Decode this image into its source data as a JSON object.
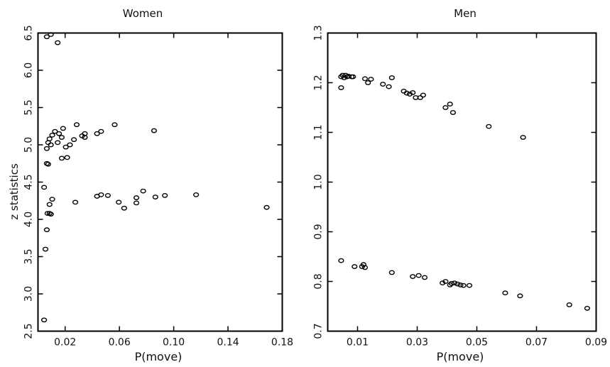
{
  "chart_data": [
    {
      "type": "scatter",
      "title": "Women",
      "xlabel": "P(move)",
      "ylabel": "z statistics",
      "xlim": [
        0.0,
        0.18
      ],
      "ylim": [
        2.5,
        6.5
      ],
      "xticks": [
        "0.02",
        "0.06",
        "0.10",
        "0.14",
        "0.18"
      ],
      "xtick_values": [
        0.02,
        0.06,
        0.1,
        0.14,
        0.18
      ],
      "yticks": [
        "2.5",
        "3.0",
        "3.5",
        "4.0",
        "4.5",
        "5.0",
        "5.5",
        "6.0",
        "6.5"
      ],
      "ytick_values": [
        2.5,
        3.0,
        3.5,
        4.0,
        4.5,
        5.0,
        5.5,
        6.0,
        6.5
      ],
      "marker": "open-circle",
      "points": [
        [
          0.0045,
          2.65
        ],
        [
          0.0055,
          3.6
        ],
        [
          0.0065,
          3.86
        ],
        [
          0.007,
          4.08
        ],
        [
          0.0085,
          4.08
        ],
        [
          0.0095,
          4.07
        ],
        [
          0.0085,
          4.2
        ],
        [
          0.0105,
          4.27
        ],
        [
          0.0045,
          4.43
        ],
        [
          0.0065,
          4.75
        ],
        [
          0.0075,
          4.74
        ],
        [
          0.0065,
          4.95
        ],
        [
          0.0075,
          5.03
        ],
        [
          0.0095,
          5.0
        ],
        [
          0.0085,
          5.08
        ],
        [
          0.0105,
          5.13
        ],
        [
          0.0125,
          5.18
        ],
        [
          0.0145,
          5.03
        ],
        [
          0.0155,
          5.15
        ],
        [
          0.0175,
          5.1
        ],
        [
          0.0185,
          5.22
        ],
        [
          0.0175,
          4.82
        ],
        [
          0.0215,
          4.83
        ],
        [
          0.0205,
          4.97
        ],
        [
          0.0235,
          5.0
        ],
        [
          0.0265,
          5.07
        ],
        [
          0.0285,
          5.27
        ],
        [
          0.0325,
          5.12
        ],
        [
          0.0345,
          5.15
        ],
        [
          0.0345,
          5.1
        ],
        [
          0.0435,
          5.15
        ],
        [
          0.0465,
          5.18
        ],
        [
          0.0565,
          5.27
        ],
        [
          0.0855,
          5.19
        ],
        [
          0.0275,
          4.23
        ],
        [
          0.0435,
          4.31
        ],
        [
          0.0465,
          4.33
        ],
        [
          0.0515,
          4.32
        ],
        [
          0.0595,
          4.23
        ],
        [
          0.0635,
          4.15
        ],
        [
          0.0725,
          4.22
        ],
        [
          0.0725,
          4.29
        ],
        [
          0.0775,
          4.38
        ],
        [
          0.0865,
          4.3
        ],
        [
          0.0935,
          4.32
        ],
        [
          0.1165,
          4.33
        ],
        [
          0.1685,
          4.16
        ],
        [
          0.0065,
          6.45
        ],
        [
          0.0095,
          6.48
        ],
        [
          0.0145,
          6.37
        ]
      ]
    },
    {
      "type": "scatter",
      "title": "Men",
      "xlabel": "P(move)",
      "ylabel": "",
      "xlim": [
        0.0,
        0.09
      ],
      "ylim": [
        0.7,
        1.3
      ],
      "xticks": [
        "0.01",
        "0.03",
        "0.05",
        "0.07",
        "0.09"
      ],
      "xtick_values": [
        0.01,
        0.03,
        0.05,
        0.07,
        0.09
      ],
      "yticks": [
        "0.7",
        "0.8",
        "0.9",
        "1.0",
        "1.1",
        "1.2",
        "1.3"
      ],
      "ytick_values": [
        0.7,
        0.8,
        0.9,
        1.0,
        1.1,
        1.2,
        1.3
      ],
      "marker": "open-circle",
      "points": [
        [
          0.0045,
          1.19
        ],
        [
          0.0045,
          1.212
        ],
        [
          0.005,
          1.215
        ],
        [
          0.0055,
          1.21
        ],
        [
          0.006,
          1.215
        ],
        [
          0.0065,
          1.212
        ],
        [
          0.007,
          1.213
        ],
        [
          0.008,
          1.212
        ],
        [
          0.0085,
          1.212
        ],
        [
          0.0125,
          1.208
        ],
        [
          0.0135,
          1.2
        ],
        [
          0.0145,
          1.207
        ],
        [
          0.0185,
          1.197
        ],
        [
          0.0205,
          1.192
        ],
        [
          0.0215,
          1.21
        ],
        [
          0.0255,
          1.183
        ],
        [
          0.0265,
          1.179
        ],
        [
          0.0275,
          1.177
        ],
        [
          0.0285,
          1.18
        ],
        [
          0.0295,
          1.17
        ],
        [
          0.031,
          1.17
        ],
        [
          0.032,
          1.175
        ],
        [
          0.0395,
          1.15
        ],
        [
          0.041,
          1.157
        ],
        [
          0.042,
          1.14
        ],
        [
          0.054,
          1.112
        ],
        [
          0.0655,
          1.09
        ],
        [
          0.0045,
          0.842
        ],
        [
          0.009,
          0.83
        ],
        [
          0.0115,
          0.83
        ],
        [
          0.012,
          0.834
        ],
        [
          0.0125,
          0.828
        ],
        [
          0.0215,
          0.818
        ],
        [
          0.0285,
          0.81
        ],
        [
          0.0305,
          0.812
        ],
        [
          0.0325,
          0.808
        ],
        [
          0.0385,
          0.797
        ],
        [
          0.0395,
          0.8
        ],
        [
          0.041,
          0.793
        ],
        [
          0.0415,
          0.796
        ],
        [
          0.0425,
          0.797
        ],
        [
          0.0435,
          0.795
        ],
        [
          0.0445,
          0.793
        ],
        [
          0.0455,
          0.792
        ],
        [
          0.0475,
          0.792
        ],
        [
          0.0595,
          0.777
        ],
        [
          0.0645,
          0.771
        ],
        [
          0.081,
          0.753
        ],
        [
          0.087,
          0.746
        ]
      ]
    }
  ]
}
